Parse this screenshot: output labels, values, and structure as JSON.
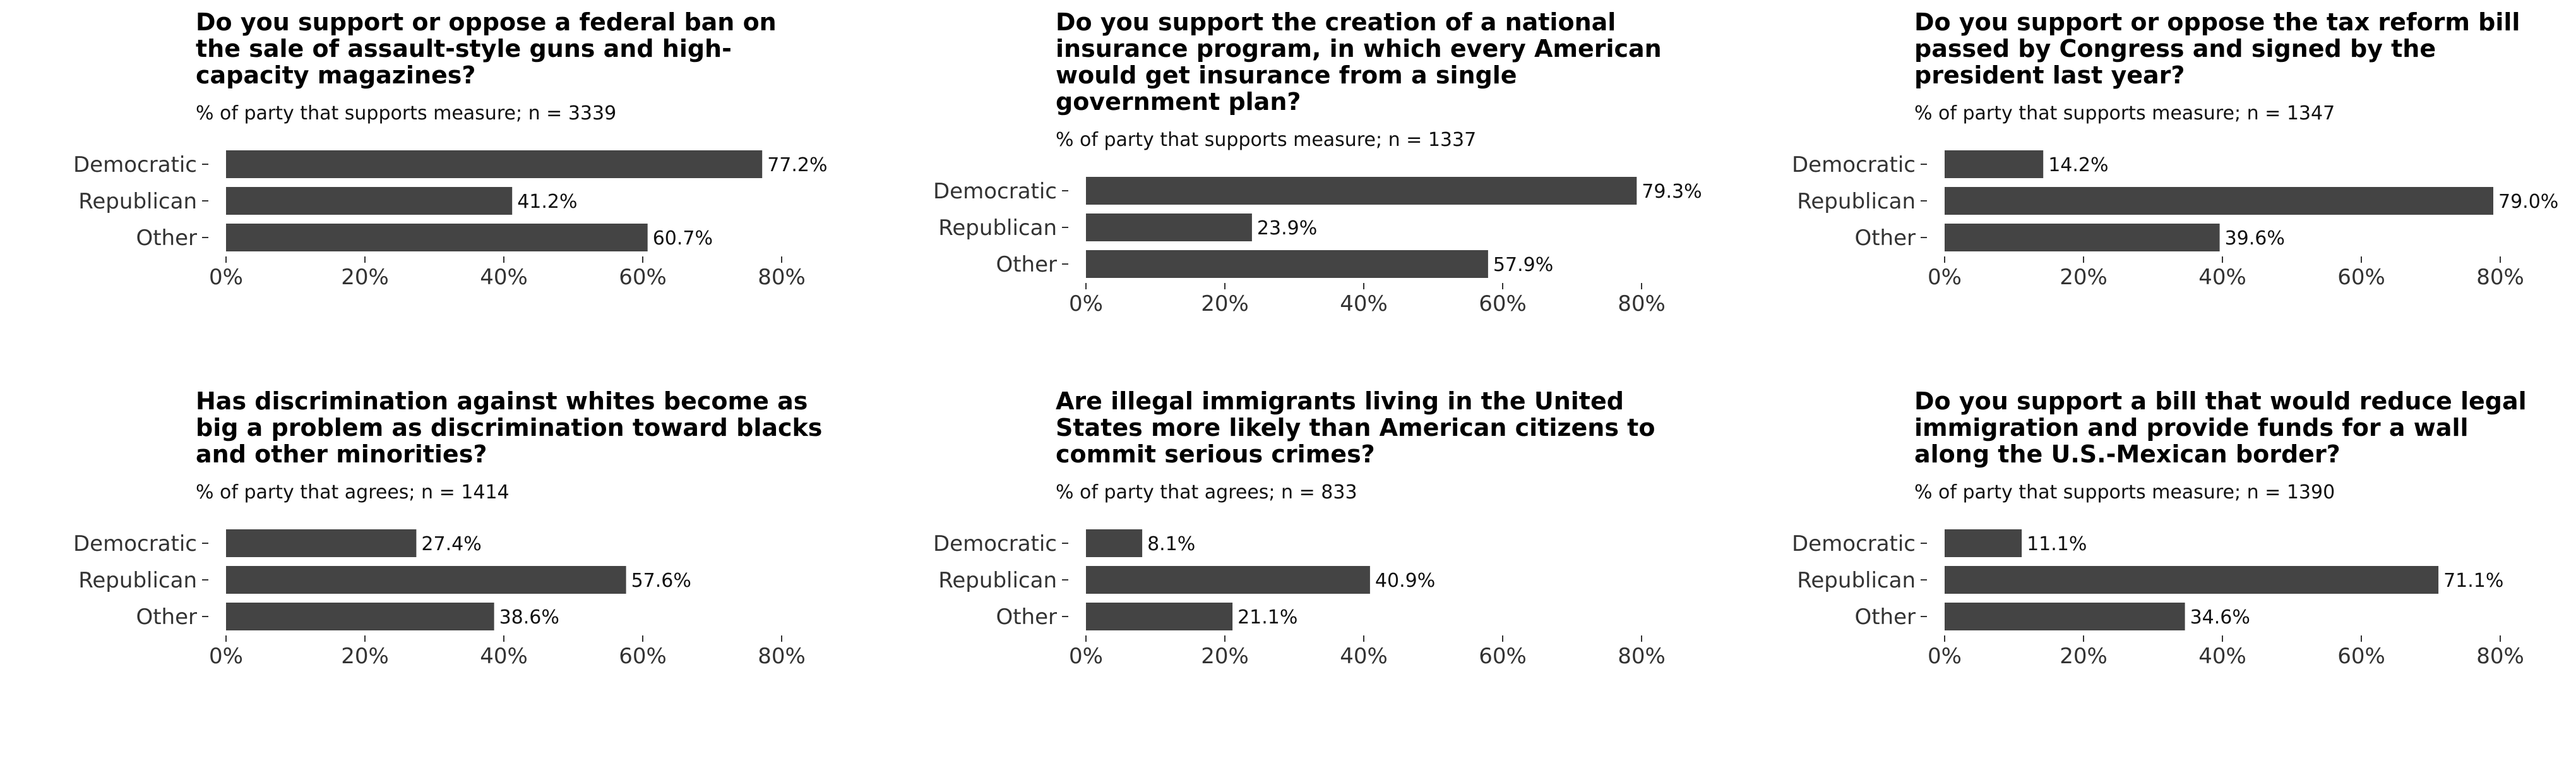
{
  "chart_data": [
    {
      "type": "bar",
      "orientation": "horizontal",
      "title": "Do you support or oppose a federal ban on the sale of assault-style guns and high-capacity magazines?",
      "subtitle": "% of party that supports measure; n = 3339",
      "categories": [
        "Democratic",
        "Republican",
        "Other"
      ],
      "values": [
        77.2,
        41.2,
        60.7
      ],
      "value_labels": [
        "77.2%",
        "41.2%",
        "60.7%"
      ],
      "xlim": [
        0,
        80
      ],
      "ticks": [
        0,
        20,
        40,
        60,
        80
      ],
      "tick_labels": [
        "0%",
        "20%",
        "40%",
        "60%",
        "80%"
      ],
      "grid": false
    },
    {
      "type": "bar",
      "orientation": "horizontal",
      "title": "Do you support the creation of a national insurance program, in which every American would get insurance from a single government plan?",
      "subtitle": "% of party that supports measure; n = 1337",
      "categories": [
        "Democratic",
        "Republican",
        "Other"
      ],
      "values": [
        79.3,
        23.9,
        57.9
      ],
      "value_labels": [
        "79.3%",
        "23.9%",
        "57.9%"
      ],
      "xlim": [
        0,
        80
      ],
      "ticks": [
        0,
        20,
        40,
        60,
        80
      ],
      "tick_labels": [
        "0%",
        "20%",
        "40%",
        "60%",
        "80%"
      ],
      "grid": false
    },
    {
      "type": "bar",
      "orientation": "horizontal",
      "title": "Do you support or oppose the tax reform bill passed by Congress and signed by the president last year?",
      "subtitle": "% of party that supports measure; n = 1347",
      "categories": [
        "Democratic",
        "Republican",
        "Other"
      ],
      "values": [
        14.2,
        79.0,
        39.6
      ],
      "value_labels": [
        "14.2%",
        "79.0%",
        "39.6%"
      ],
      "xlim": [
        0,
        80
      ],
      "ticks": [
        0,
        20,
        40,
        60,
        80
      ],
      "tick_labels": [
        "0%",
        "20%",
        "40%",
        "60%",
        "80%"
      ],
      "grid": false
    },
    {
      "type": "bar",
      "orientation": "horizontal",
      "title": "Has discrimination against whites become as big a problem as discrimination toward blacks and other minorities?",
      "subtitle": "% of party that agrees; n = 1414",
      "categories": [
        "Democratic",
        "Republican",
        "Other"
      ],
      "values": [
        27.4,
        57.6,
        38.6
      ],
      "value_labels": [
        "27.4%",
        "57.6%",
        "38.6%"
      ],
      "xlim": [
        0,
        80
      ],
      "ticks": [
        0,
        20,
        40,
        60,
        80
      ],
      "tick_labels": [
        "0%",
        "20%",
        "40%",
        "60%",
        "80%"
      ],
      "grid": false
    },
    {
      "type": "bar",
      "orientation": "horizontal",
      "title": "Are illegal immigrants living in the United States more likely than American citizens to commit serious crimes?",
      "subtitle": "% of party that agrees; n = 833",
      "categories": [
        "Democratic",
        "Republican",
        "Other"
      ],
      "values": [
        8.1,
        40.9,
        21.1
      ],
      "value_labels": [
        "8.1%",
        "40.9%",
        "21.1%"
      ],
      "xlim": [
        0,
        80
      ],
      "ticks": [
        0,
        20,
        40,
        60,
        80
      ],
      "tick_labels": [
        "0%",
        "20%",
        "40%",
        "60%",
        "80%"
      ],
      "grid": false
    },
    {
      "type": "bar",
      "orientation": "horizontal",
      "title": "Do you support a bill that would reduce legal immigration and provide funds for a wall along the U.S.-Mexican border?",
      "subtitle": "% of party that supports measure; n = 1390",
      "categories": [
        "Democratic",
        "Republican",
        "Other"
      ],
      "values": [
        11.1,
        71.1,
        34.6
      ],
      "value_labels": [
        "11.1%",
        "71.1%",
        "34.6%"
      ],
      "xlim": [
        0,
        80
      ],
      "ticks": [
        0,
        20,
        40,
        60,
        80
      ],
      "tick_labels": [
        "0%",
        "20%",
        "40%",
        "60%",
        "80%"
      ],
      "grid": false
    }
  ],
  "colors": {
    "bar": "#444444",
    "text": "#111111",
    "background": "#ffffff"
  }
}
